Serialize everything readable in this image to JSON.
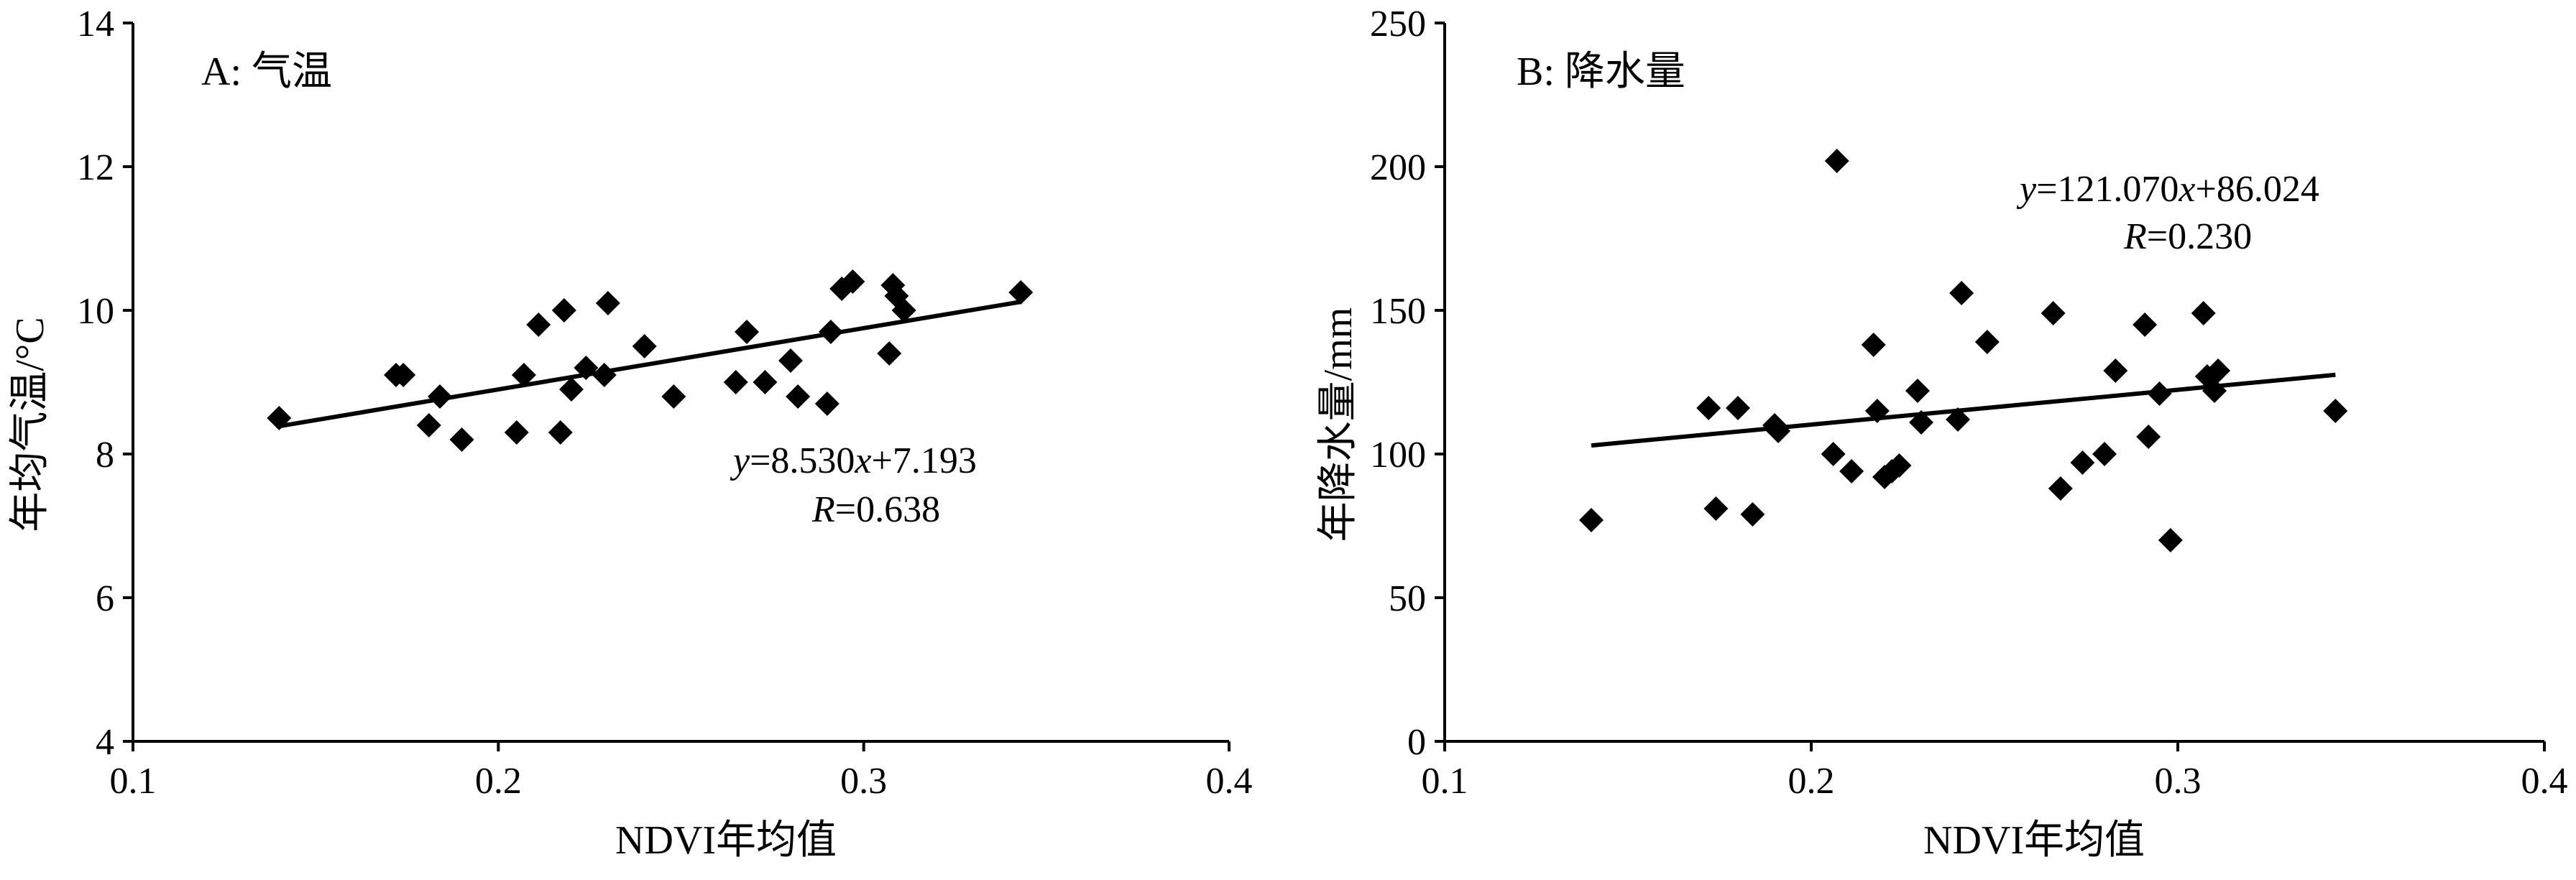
{
  "chart_data": [
    {
      "type": "scatter",
      "panel_label": "A: 气温",
      "xlabel": "NDVI年均值",
      "ylabel": "年均气温/°C",
      "xlim": [
        0.1,
        0.4
      ],
      "ylim": [
        4,
        14
      ],
      "xticks": [
        "0.1",
        "0.2",
        "0.3",
        "0.4"
      ],
      "yticks": [
        "4",
        "6",
        "8",
        "10",
        "12",
        "14"
      ],
      "xtick_values": [
        0.1,
        0.2,
        0.3,
        0.4
      ],
      "ytick_values": [
        4,
        6,
        8,
        10,
        12,
        14
      ],
      "equation": {
        "y": "y",
        "rest": "=8.530",
        "x": "x",
        "tail": "+7.193"
      },
      "r_text": {
        "r": "R",
        "rest": "=0.638"
      },
      "fit": {
        "slope": 8.53,
        "intercept": 7.193,
        "x_range": [
          0.14,
          0.343
        ]
      },
      "points": [
        [
          0.14,
          8.5
        ],
        [
          0.172,
          9.1
        ],
        [
          0.174,
          9.1
        ],
        [
          0.181,
          8.4
        ],
        [
          0.184,
          8.8
        ],
        [
          0.19,
          8.2
        ],
        [
          0.205,
          8.3
        ],
        [
          0.207,
          9.1
        ],
        [
          0.211,
          9.8
        ],
        [
          0.217,
          8.3
        ],
        [
          0.218,
          10.0
        ],
        [
          0.22,
          8.9
        ],
        [
          0.224,
          9.2
        ],
        [
          0.229,
          9.1
        ],
        [
          0.23,
          10.1
        ],
        [
          0.24,
          9.5
        ],
        [
          0.248,
          8.8
        ],
        [
          0.265,
          9.0
        ],
        [
          0.268,
          9.7
        ],
        [
          0.273,
          9.0
        ],
        [
          0.28,
          9.3
        ],
        [
          0.282,
          8.8
        ],
        [
          0.29,
          8.7
        ],
        [
          0.291,
          9.7
        ],
        [
          0.294,
          10.3
        ],
        [
          0.297,
          10.4
        ],
        [
          0.307,
          9.4
        ],
        [
          0.308,
          10.35
        ],
        [
          0.309,
          10.2
        ],
        [
          0.311,
          10.0
        ],
        [
          0.343,
          10.25
        ]
      ]
    },
    {
      "type": "scatter",
      "panel_label": "B: 降水量",
      "xlabel": "NDVI年均值",
      "ylabel": "年降水量/mm",
      "xlim": [
        0.1,
        0.4
      ],
      "ylim": [
        0,
        250
      ],
      "xticks": [
        "0.1",
        "0.2",
        "0.3",
        "0.4"
      ],
      "yticks": [
        "0",
        "50",
        "100",
        "150",
        "200",
        "250"
      ],
      "xtick_values": [
        0.1,
        0.2,
        0.3,
        0.4
      ],
      "ytick_values": [
        0,
        50,
        100,
        150,
        200,
        250
      ],
      "equation": {
        "y": "y",
        "rest": "=121.070",
        "x": "x",
        "tail": "+86.024"
      },
      "r_text": {
        "r": "R",
        "rest": "=0.230"
      },
      "fit": {
        "slope": 121.07,
        "intercept": 86.024,
        "x_range": [
          0.14,
          0.343
        ]
      },
      "points": [
        [
          0.14,
          77
        ],
        [
          0.172,
          116
        ],
        [
          0.174,
          81
        ],
        [
          0.18,
          116
        ],
        [
          0.184,
          79
        ],
        [
          0.19,
          110
        ],
        [
          0.191,
          108
        ],
        [
          0.206,
          100
        ],
        [
          0.207,
          202
        ],
        [
          0.211,
          94
        ],
        [
          0.217,
          138
        ],
        [
          0.218,
          115
        ],
        [
          0.22,
          92
        ],
        [
          0.222,
          94
        ],
        [
          0.224,
          96
        ],
        [
          0.229,
          122
        ],
        [
          0.23,
          111
        ],
        [
          0.24,
          112
        ],
        [
          0.241,
          156
        ],
        [
          0.248,
          139
        ],
        [
          0.266,
          149
        ],
        [
          0.268,
          88
        ],
        [
          0.274,
          97
        ],
        [
          0.28,
          100
        ],
        [
          0.283,
          129
        ],
        [
          0.291,
          145
        ],
        [
          0.292,
          106
        ],
        [
          0.295,
          121
        ],
        [
          0.298,
          70
        ],
        [
          0.307,
          149
        ],
        [
          0.308,
          127
        ],
        [
          0.31,
          122
        ],
        [
          0.311,
          129
        ],
        [
          0.343,
          115
        ]
      ]
    }
  ]
}
